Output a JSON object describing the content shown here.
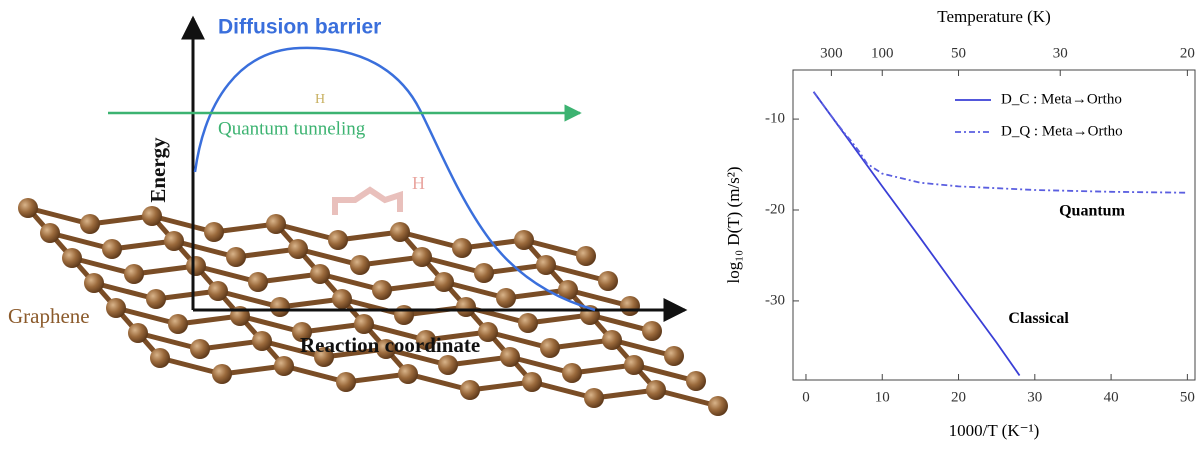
{
  "diagram": {
    "barrier_label": "Diffusion barrier",
    "tunneling_label": "Quantum tunneling",
    "energy_label": "Energy",
    "reaction_label": "Reaction coordinate",
    "graphene_label": "Graphene",
    "atom_label_top": "H",
    "atom_label_surface": "H"
  },
  "chart_data": {
    "type": "line",
    "x_label": "1000/T (K⁻¹)",
    "x2_label": "Temperature (K)",
    "y_label": "log₁₀ D(T)  (m/s²)",
    "xlim": [
      -1.7,
      51
    ],
    "ylim": [
      -38.7,
      -4.6
    ],
    "xticks": [
      0,
      10,
      20,
      30,
      40,
      50
    ],
    "yticks": [
      -10,
      -20,
      -30
    ],
    "x2ticks": [
      {
        "value": 3.333,
        "label": "300"
      },
      {
        "value": 10,
        "label": "100"
      },
      {
        "value": 20,
        "label": "50"
      },
      {
        "value": 33.333,
        "label": "30"
      },
      {
        "value": 50,
        "label": "20"
      }
    ],
    "legend": "upper right",
    "series": [
      {
        "name": "D_C : Meta→Ortho",
        "color": "#3a3fd6",
        "dash": "solid",
        "x": [
          1,
          5,
          10,
          15,
          20,
          25,
          28
        ],
        "values": [
          -7,
          -11.6,
          -17.4,
          -23.1,
          -28.9,
          -34.6,
          -38.2
        ]
      },
      {
        "name": "D_Q : Meta→Ortho",
        "color": "#5a5ee0",
        "dash": "dashdot",
        "x": [
          1,
          3,
          5,
          6,
          7,
          8,
          10,
          15,
          20,
          30,
          40,
          50
        ],
        "values": [
          -7,
          -9.3,
          -11.5,
          -12.5,
          -13.6,
          -14.9,
          -16.0,
          -17.0,
          -17.4,
          -17.8,
          -18.0,
          -18.1
        ]
      }
    ],
    "annotations": [
      {
        "text": "Quantum",
        "x": 37.5,
        "y": -20.2
      },
      {
        "text": "Classical",
        "x": 30.5,
        "y": -32
      }
    ]
  }
}
